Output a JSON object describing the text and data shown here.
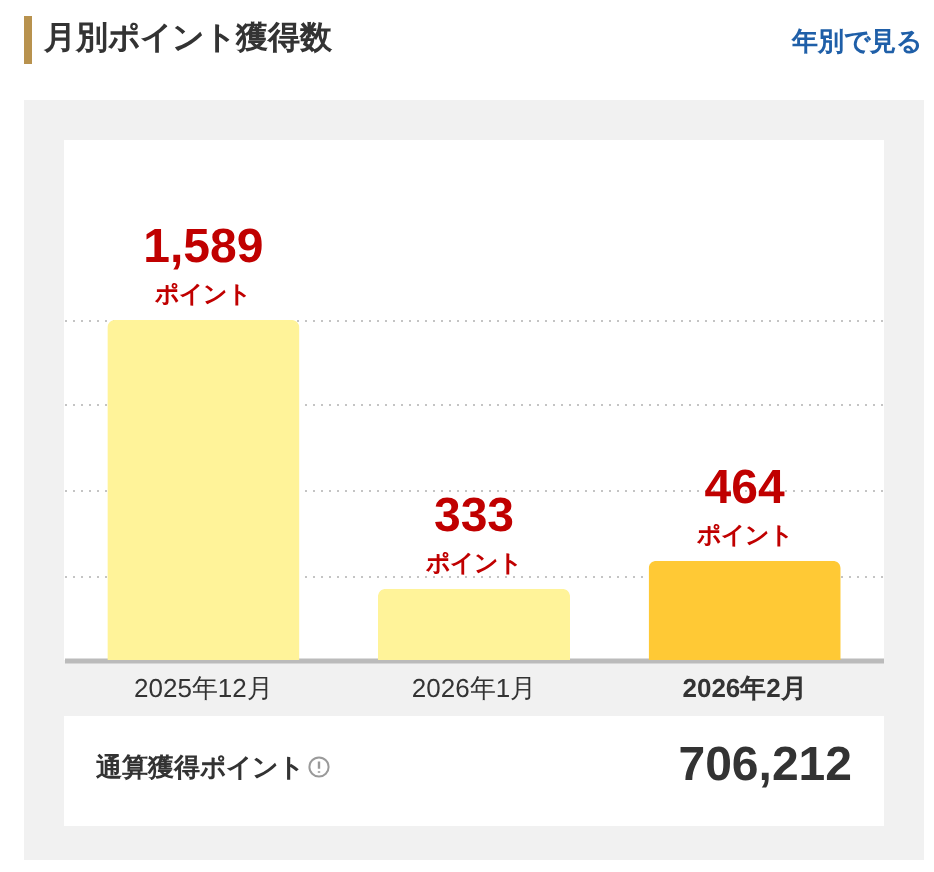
{
  "chart_data": [
    {
      "type": "bar",
      "title": "月別ポイント獲得数",
      "categories": [
        "2025年12月",
        "2026年1月",
        "2026年2月"
      ],
      "values": [
        1589,
        333,
        464
      ],
      "colors": [
        "#fff399",
        "#fff399",
        "#ffc935"
      ],
      "value_labels": [
        "1,589",
        "333",
        "464"
      ],
      "ylim": [
        0,
        2430
      ],
      "yticks": [
        {
          "value": 397,
          "label": null
        },
        {
          "value": 795,
          "label": null
        },
        {
          "value": 1192,
          "label": null
        },
        {
          "value": 1589,
          "label": null
        }
      ],
      "grid": "y",
      "tick_labels": "x",
      "annotations": [
        "年別で見る",
        {
          "text": "ポイント",
          "x": "2025年12月",
          "y": 1589
        },
        {
          "text": "ポイント",
          "x": "2026年1月",
          "y": 333
        },
        {
          "text": "ポイント",
          "x": "2026年2月",
          "y": 464
        }
      ]
    },
    {
      "type": "other",
      "title": "通算獲得ポイント",
      "annotations": [
        "706,212"
      ]
    }
  ]
}
